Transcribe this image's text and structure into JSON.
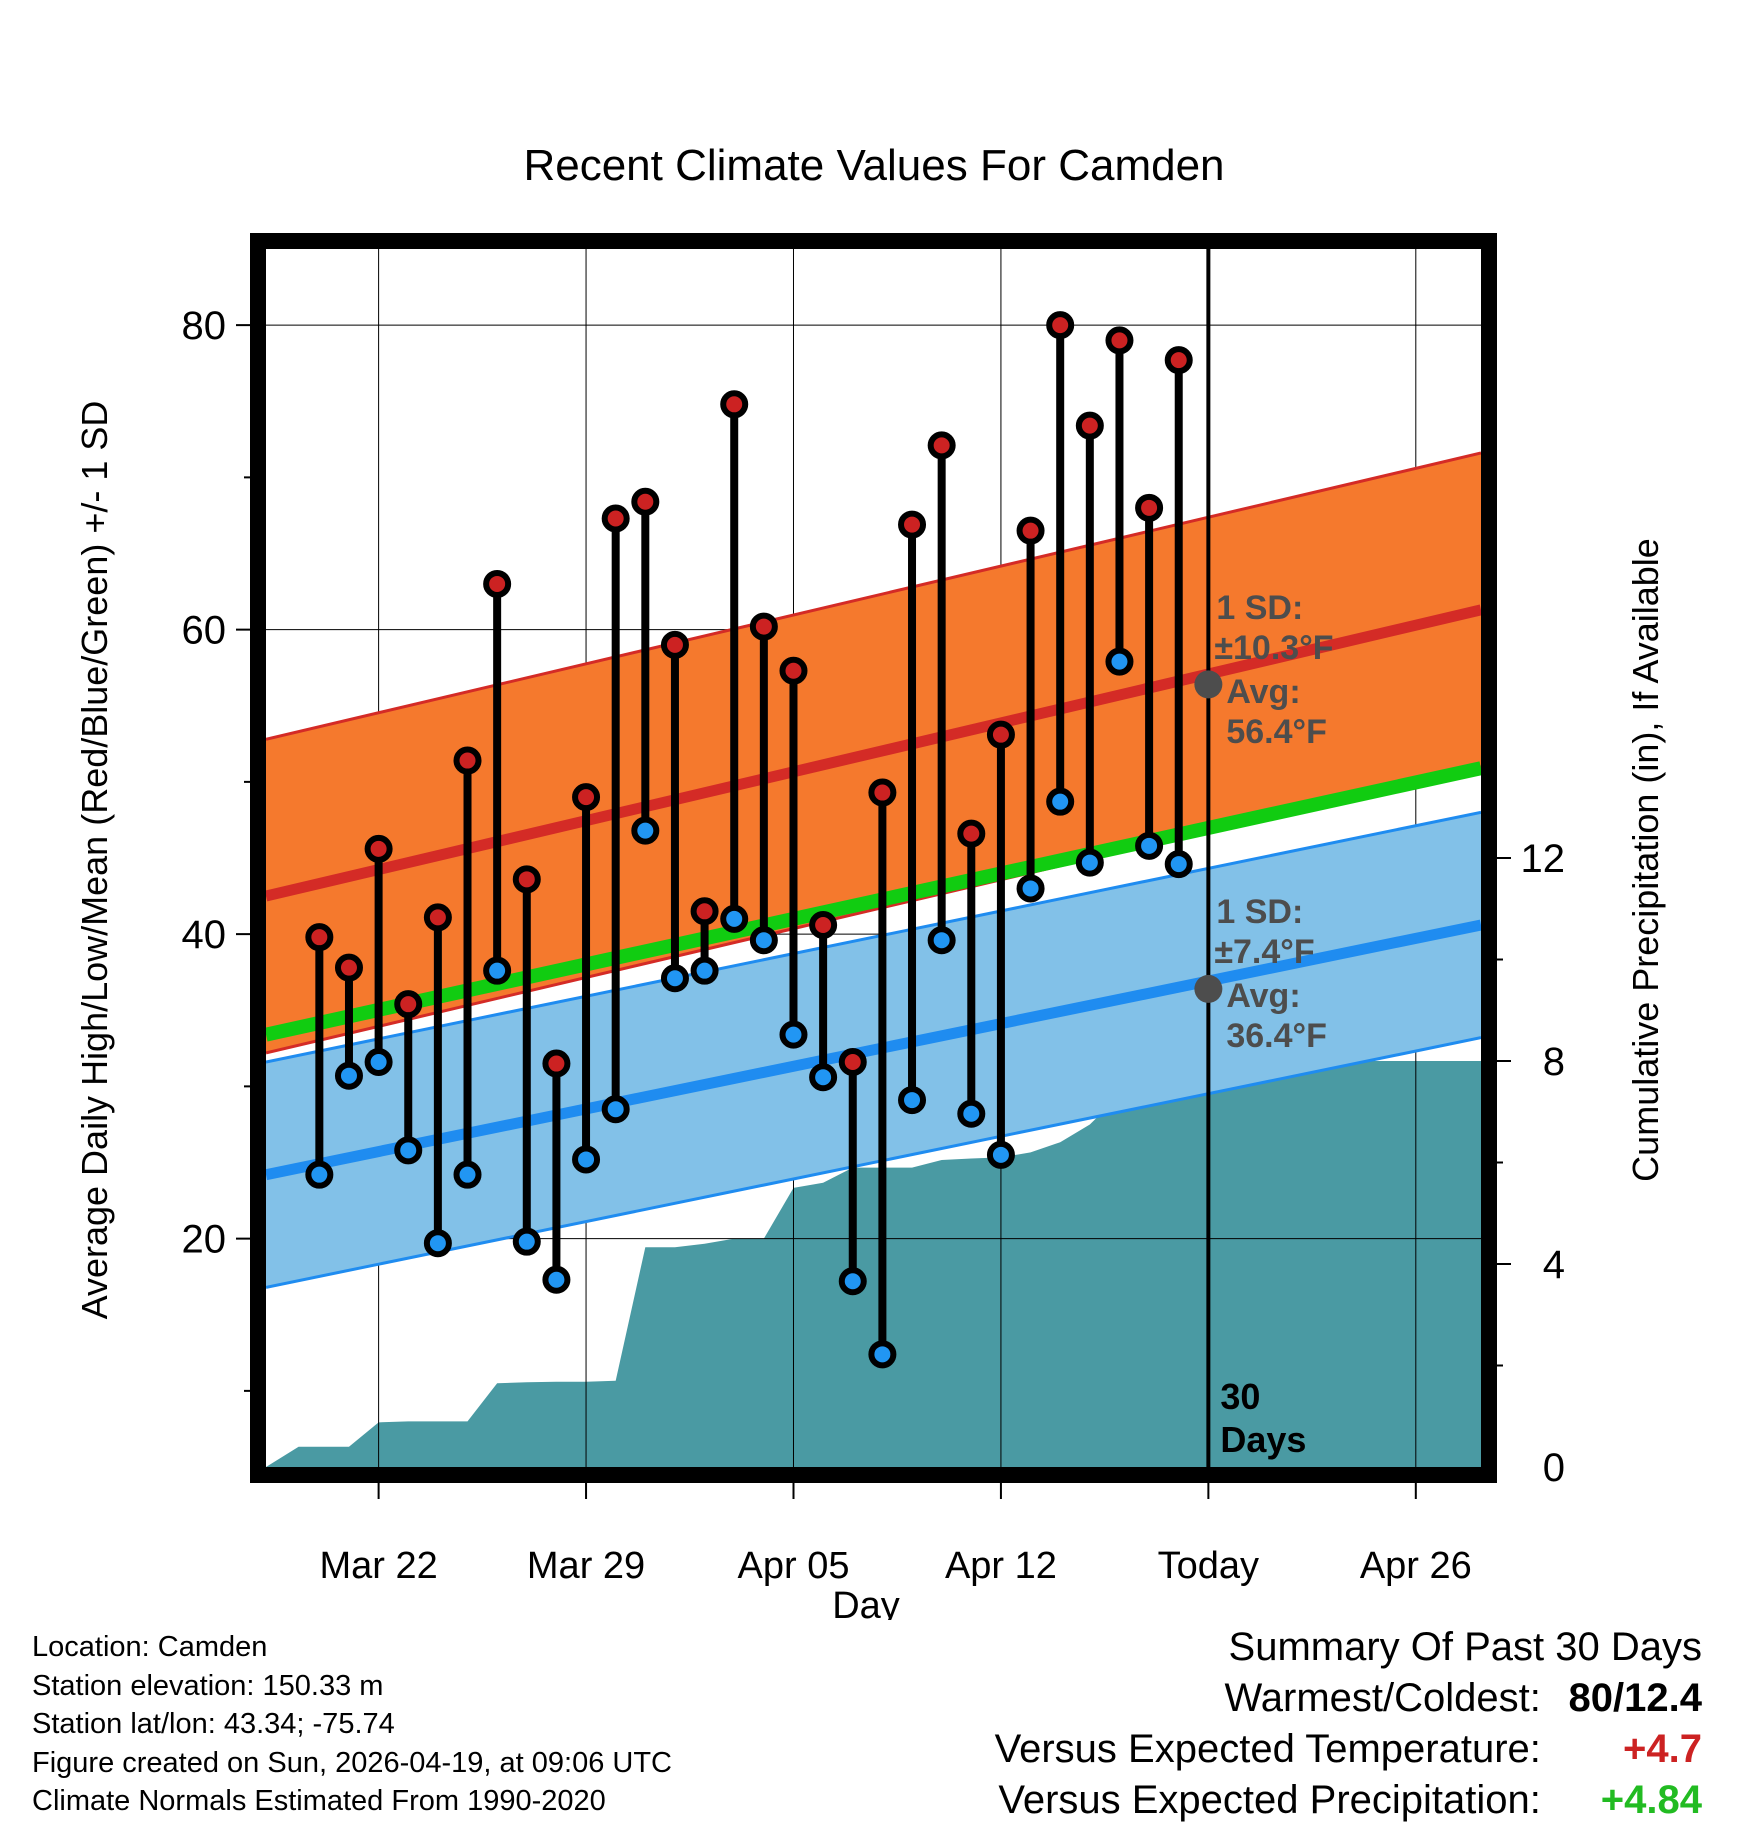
{
  "chart_data": {
    "type": "line",
    "title": "Recent Climate Values For Camden",
    "xlabel": "Day",
    "ylabel_left": "Average Daily High/Low/Mean (Red/Blue/Green) +/- 1 SD",
    "ylabel_right": "Cumulative Precipitation (in), If Available",
    "x_tick_labels": [
      "Mar 22",
      "Mar 29",
      "Apr 05",
      "Apr 12",
      "Today",
      "Apr 26"
    ],
    "x_tick_days": [
      3,
      10,
      17,
      24,
      31,
      38
    ],
    "xlim_days": [
      -0.8,
      40.2
    ],
    "ylim_left": [
      5,
      85
    ],
    "yticks_left": [
      20,
      40,
      60,
      80
    ],
    "ylim_right": [
      0,
      24
    ],
    "yticks_right": [
      0,
      4,
      8,
      12
    ],
    "today_day": 31,
    "today_label": [
      "30",
      "Days"
    ],
    "normal_high": {
      "start": 42.5,
      "end": 61.3,
      "sd": 10.3
    },
    "normal_low": {
      "start": 24.2,
      "end": 40.6,
      "sd": 7.4
    },
    "normal_mean": {
      "start": 33.4,
      "end": 50.9
    },
    "annotations": {
      "high": [
        "1 SD:",
        "±10.3°F",
        "Avg:",
        "56.4°F"
      ],
      "low": [
        "1 SD:",
        "±7.4°F",
        "Avg:",
        "36.4°F"
      ],
      "today_high_avg": 56.4,
      "today_low_avg": 36.4
    },
    "days": [
      1,
      2,
      3,
      4,
      5,
      6,
      7,
      8,
      9,
      10,
      11,
      12,
      13,
      14,
      15,
      16,
      17,
      18,
      19,
      20,
      21,
      22,
      23,
      24,
      25,
      26,
      27,
      28,
      29,
      30
    ],
    "highs": [
      39.8,
      37.8,
      45.6,
      35.4,
      41.1,
      51.4,
      63.0,
      43.6,
      31.5,
      49.0,
      67.3,
      68.4,
      59.0,
      41.5,
      74.8,
      60.2,
      57.3,
      40.6,
      31.6,
      49.3,
      66.9,
      72.1,
      46.6,
      53.1,
      66.5,
      80.0,
      73.4,
      79.0,
      68.0,
      77.7
    ],
    "lows": [
      24.2,
      30.7,
      31.6,
      25.8,
      19.7,
      24.2,
      37.6,
      19.8,
      17.3,
      25.2,
      28.5,
      46.8,
      37.1,
      37.6,
      41.0,
      39.6,
      33.4,
      30.6,
      17.2,
      12.4,
      29.1,
      39.6,
      28.2,
      25.5,
      43.0,
      48.7,
      44.7,
      57.9,
      45.8,
      44.6
    ],
    "precip_series": {
      "name": "Cumulative Precipitation",
      "day": [
        -0.8,
        0.3,
        1.0,
        2.0,
        3.0,
        4.0,
        5.0,
        6.0,
        7.0,
        8.0,
        9.0,
        10.0,
        11.0,
        12.0,
        13.0,
        14.0,
        15.0,
        16.0,
        17.0,
        18.0,
        19.0,
        20.0,
        21.0,
        22.0,
        23.0,
        24.0,
        25.0,
        26.0,
        27.0,
        28.0,
        29.0,
        30.0,
        31.0,
        40.2
      ],
      "inches": [
        0,
        0.4,
        0.4,
        0.4,
        0.88,
        0.9,
        0.9,
        0.9,
        1.65,
        1.67,
        1.68,
        1.68,
        1.7,
        4.33,
        4.33,
        4.4,
        4.5,
        4.5,
        5.5,
        5.6,
        5.9,
        5.9,
        5.9,
        6.05,
        6.08,
        6.1,
        6.2,
        6.4,
        6.75,
        7.32,
        7.38,
        8.0,
        8.0,
        8.0
      ]
    }
  },
  "info": {
    "location": "Location: Camden",
    "elevation": "Station elevation: 150.33 m",
    "latlon": "Station lat/lon: 43.34; -75.74",
    "created": "Figure created on Sun, 2026-04-19, at 09:06 UTC",
    "normals": "Climate Normals Estimated From 1990-2020"
  },
  "summary": {
    "title": "Summary Of Past 30 Days",
    "warm_cold_label": "Warmest/Coldest:",
    "warm_cold_value": "80/12.4",
    "temp_label": "Versus Expected Temperature:",
    "temp_value": "+4.7",
    "precip_label": "Versus Expected Precipitation:",
    "precip_value": "+4.84"
  },
  "colors": {
    "high_band": "#f5792d",
    "high_line": "#d42b26",
    "low_band": "#82c1e8",
    "low_line": "#1f8cf0",
    "mean_line": "#11cc11",
    "precip_fill": "#4a9aa3",
    "annotation": "#4d4d4d",
    "high_marker": "#cc2222",
    "low_marker": "#2196f3"
  }
}
